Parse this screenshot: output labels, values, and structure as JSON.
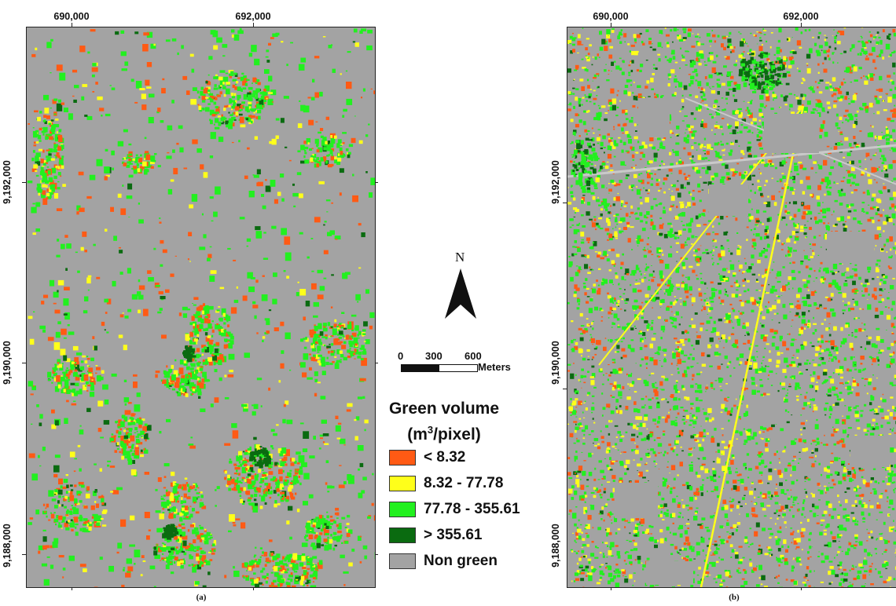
{
  "panels": [
    {
      "caption": "(a)",
      "x_ticks": [
        "690,000",
        "692,000"
      ],
      "y_ticks": [
        "9,192,000",
        "9,190,000",
        "9,188,000"
      ]
    },
    {
      "caption": "(b)",
      "x_ticks": [
        "690,000",
        "692,000"
      ],
      "y_ticks": [
        "9,192,000",
        "9,190,000",
        "9,188,000"
      ]
    }
  ],
  "north_arrow": {
    "label": "N"
  },
  "scale_bar": {
    "labels": [
      "0",
      "300",
      "600"
    ],
    "unit": "Meters"
  },
  "legend": {
    "title_line1": "Green volume",
    "title_line2_prefix": "(m",
    "title_line2_sup": "3",
    "title_line2_suffix": "/pixel)",
    "items": [
      {
        "label": "< 8.32",
        "color": "#ff5a14"
      },
      {
        "label": "8.32 - 77.78",
        "color": "#ffff1a"
      },
      {
        "label": "77.78 - 355.61",
        "color": "#22f01f"
      },
      {
        "label": "> 355.61",
        "color": "#0a6b10"
      },
      {
        "label": "Non green",
        "color": "#a3a3a3"
      }
    ]
  }
}
